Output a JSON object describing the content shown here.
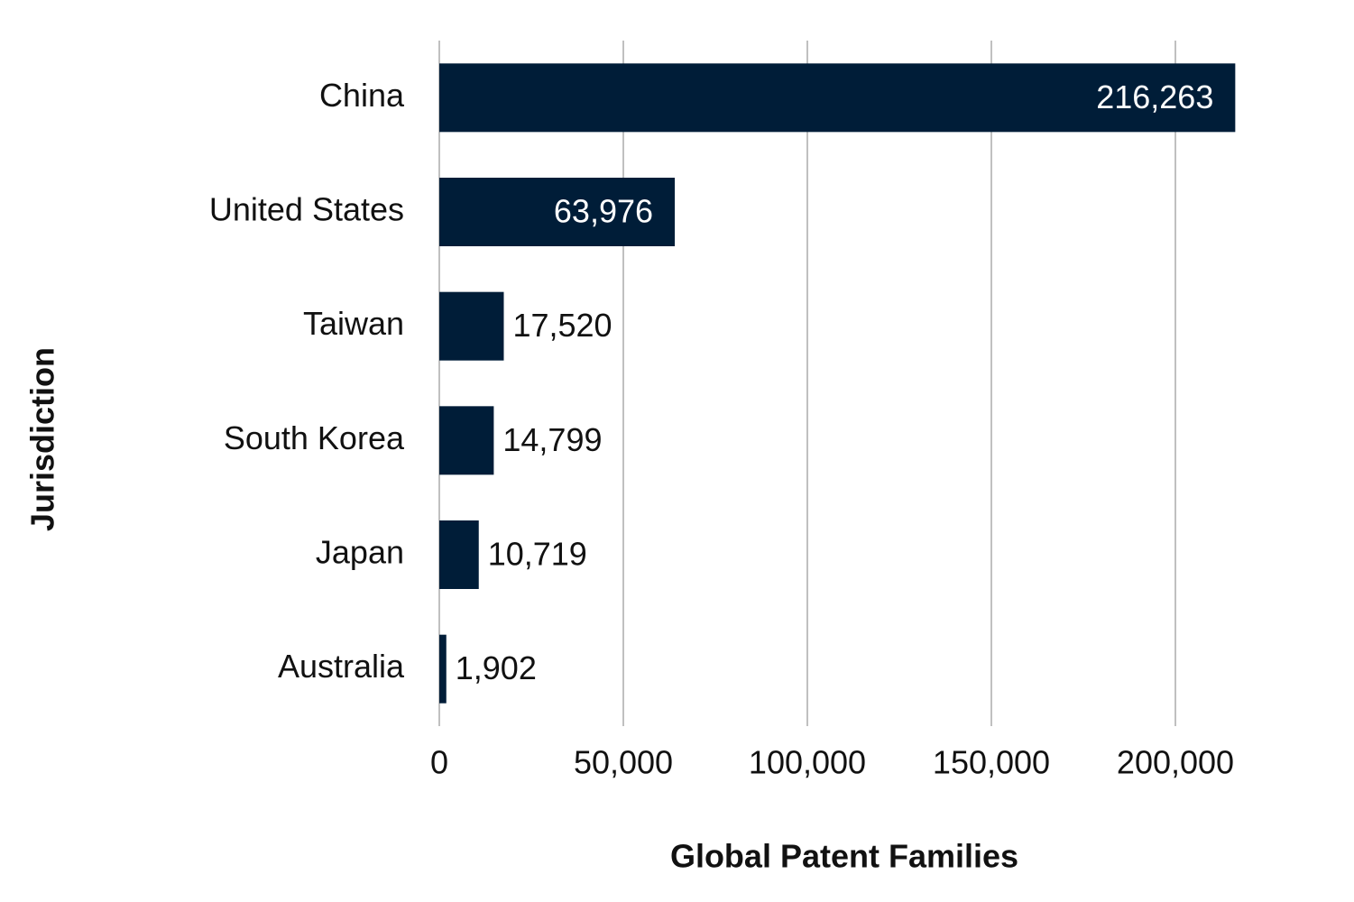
{
  "chart_data": {
    "type": "bar",
    "orientation": "horizontal",
    "x_label": "Global Patent Families",
    "y_label": "Jurisdiction",
    "categories": [
      "China",
      "United States",
      "Taiwan",
      "South Korea",
      "Japan",
      "Australia"
    ],
    "values": [
      216263,
      63976,
      17520,
      14799,
      10719,
      1902
    ],
    "value_labels": [
      "216,263",
      "63,976",
      "17,520",
      "14,799",
      "10,719",
      "1,902"
    ],
    "color": "#001d38",
    "xlim": [
      0,
      220000
    ],
    "xticks": [
      0,
      {
        "value": 50000,
        "label": "50,000"
      },
      {
        "value": 100000,
        "label": "100,000"
      },
      {
        "value": 150000,
        "label": "150,000"
      },
      {
        "value": 200000,
        "label": "200,000"
      }
    ],
    "grid": true
  }
}
